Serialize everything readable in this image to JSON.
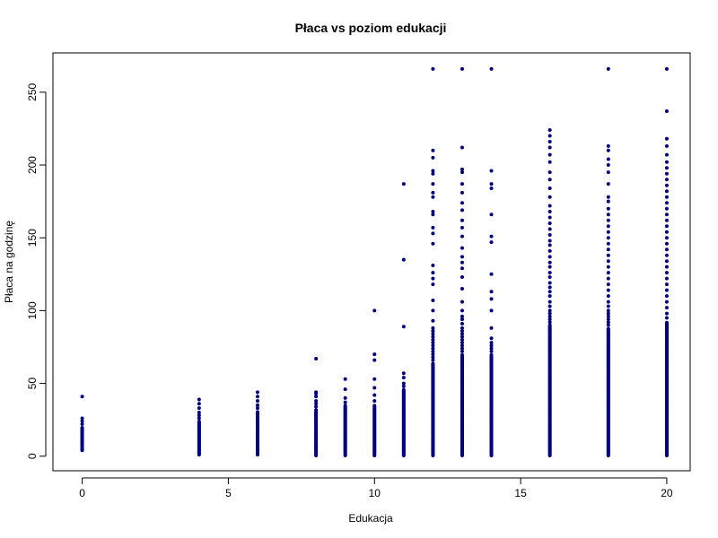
{
  "chart_data": {
    "type": "scatter",
    "title": "Płaca vs poziom edukacji",
    "xlabel": "Edukacja",
    "ylabel": "Płaca na godzinę",
    "xlim": [
      -1,
      20.8
    ],
    "ylim": [
      -10,
      277
    ],
    "xticks": [
      0,
      5,
      10,
      15,
      20
    ],
    "yticks": [
      0,
      50,
      100,
      150,
      200,
      250
    ],
    "grid": false,
    "legend": "none",
    "point_color": "#000080",
    "columns": [
      {
        "x": 0,
        "dense_min": 4,
        "dense_max": 20,
        "sparse": [
          22,
          24,
          26,
          41
        ]
      },
      {
        "x": 4,
        "dense_min": 1,
        "dense_max": 24,
        "sparse": [
          26,
          28,
          30,
          33,
          36,
          39
        ]
      },
      {
        "x": 6,
        "dense_min": 1,
        "dense_max": 31,
        "sparse": [
          33,
          35,
          38,
          41,
          44
        ]
      },
      {
        "x": 8,
        "dense_min": 0.5,
        "dense_max": 32,
        "sparse": [
          34,
          36,
          38,
          41,
          43,
          44,
          67
        ]
      },
      {
        "x": 9,
        "dense_min": 0.5,
        "dense_max": 35,
        "sparse": [
          37,
          40,
          46,
          53
        ]
      },
      {
        "x": 10,
        "dense_min": 0.5,
        "dense_max": 35,
        "sparse": [
          38,
          42,
          47,
          53,
          66,
          70,
          100
        ]
      },
      {
        "x": 11,
        "dense_min": 0.5,
        "dense_max": 46,
        "sparse": [
          48,
          50,
          54,
          57,
          89,
          135,
          187
        ]
      },
      {
        "x": 12,
        "dense_min": 0.5,
        "dense_max": 64,
        "sparse": [
          66,
          68,
          70,
          72,
          74,
          76,
          78,
          80,
          82,
          84,
          86,
          88,
          93,
          100,
          107,
          118,
          122,
          126,
          131,
          146,
          153,
          157,
          166,
          168,
          178,
          181,
          187,
          194,
          196,
          205,
          210,
          266
        ]
      },
      {
        "x": 13,
        "dense_min": 0.5,
        "dense_max": 70,
        "sparse": [
          72,
          74,
          76,
          78,
          80,
          82,
          84,
          86,
          88,
          91,
          94,
          96,
          100,
          106,
          115,
          123,
          129,
          133,
          137,
          143,
          151,
          157,
          162,
          169,
          174,
          181,
          187,
          195,
          197,
          212,
          266
        ]
      },
      {
        "x": 14,
        "dense_min": 0.5,
        "dense_max": 70,
        "sparse": [
          72,
          74,
          76,
          78,
          81,
          88,
          100,
          108,
          113,
          125,
          147,
          151,
          166,
          184,
          187,
          196,
          266
        ]
      },
      {
        "x": 16,
        "dense_min": 0.5,
        "dense_max": 90,
        "sparse": [
          92,
          94,
          96,
          98,
          100,
          103,
          106,
          110,
          113,
          116,
          119,
          123,
          126,
          130,
          133,
          137,
          141,
          145,
          148,
          152,
          156,
          160,
          164,
          168,
          172,
          178,
          184,
          190,
          195,
          202,
          207,
          212,
          216,
          220,
          224
        ]
      },
      {
        "x": 18,
        "dense_min": 0.5,
        "dense_max": 88,
        "sparse": [
          90,
          92,
          94,
          96,
          98,
          100,
          103,
          106,
          110,
          114,
          118,
          122,
          126,
          130,
          134,
          138,
          142,
          146,
          150,
          154,
          158,
          162,
          166,
          170,
          175,
          178,
          187,
          195,
          200,
          204,
          210,
          213,
          266
        ]
      },
      {
        "x": 20,
        "dense_min": 0.5,
        "dense_max": 92,
        "sparse": [
          95,
          98,
          102,
          106,
          110,
          114,
          118,
          122,
          126,
          130,
          134,
          138,
          142,
          146,
          150,
          154,
          158,
          162,
          166,
          170,
          174,
          178,
          182,
          186,
          190,
          194,
          198,
          202,
          207,
          213,
          218,
          237,
          266
        ]
      }
    ]
  }
}
